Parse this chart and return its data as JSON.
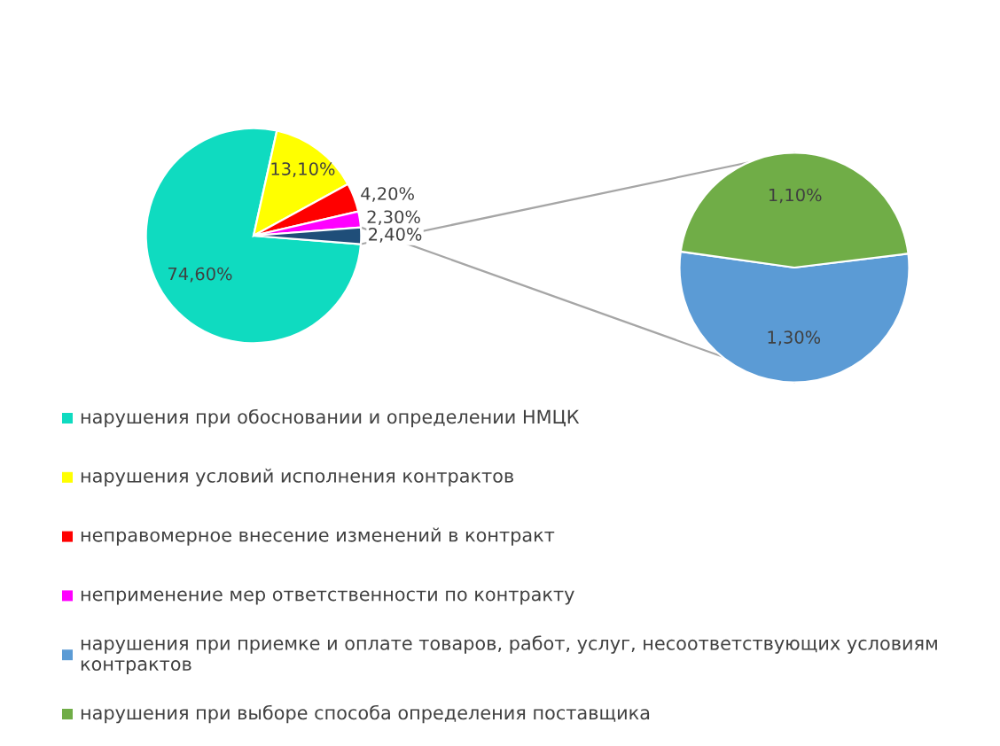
{
  "chart_data": [
    {
      "type": "pie",
      "categories": [
        "нарушения при обосновании и определении НМЦК",
        "нарушения условий исполнения контрактов",
        "неправомерное внесение изменений в контракт",
        "неприменение мер ответственности по контракту",
        null
      ],
      "values": [
        74.6,
        13.1,
        4.2,
        2.3,
        2.4
      ],
      "colors": [
        "#0fdbc0",
        "#ffff00",
        "#ff0000",
        "#ff00ff",
        "#1f4e79"
      ],
      "value_labels": [
        "74,60%",
        "13,10%",
        "4,20%",
        "2,30%",
        "2,40%"
      ],
      "legend": "bottom"
    },
    {
      "type": "pie",
      "categories": [
        "нарушения при приемке и оплате товаров, работ, услуг, несоответствующих условиям контрактов",
        "нарушения при выборе способа определения поставщика"
      ],
      "values": [
        1.3,
        1.1
      ],
      "colors": [
        "#5b9bd5",
        "#70ad47"
      ],
      "value_labels": [
        "1,30%",
        "1,10%"
      ],
      "legend": "bottom"
    }
  ]
}
